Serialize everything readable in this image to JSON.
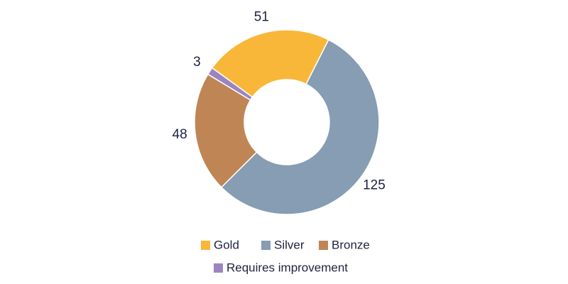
{
  "chart_data": {
    "type": "donut",
    "series": [
      {
        "name": "Gold",
        "color": "#f8b739",
        "values": [
          51
        ]
      },
      {
        "name": "Silver",
        "color": "#869db3",
        "values": [
          125
        ]
      },
      {
        "name": "Bronze",
        "color": "#c08555",
        "values": [
          48
        ]
      },
      {
        "name": "Requires improvement",
        "color": "#9b84c2",
        "values": [
          3
        ]
      }
    ]
  }
}
